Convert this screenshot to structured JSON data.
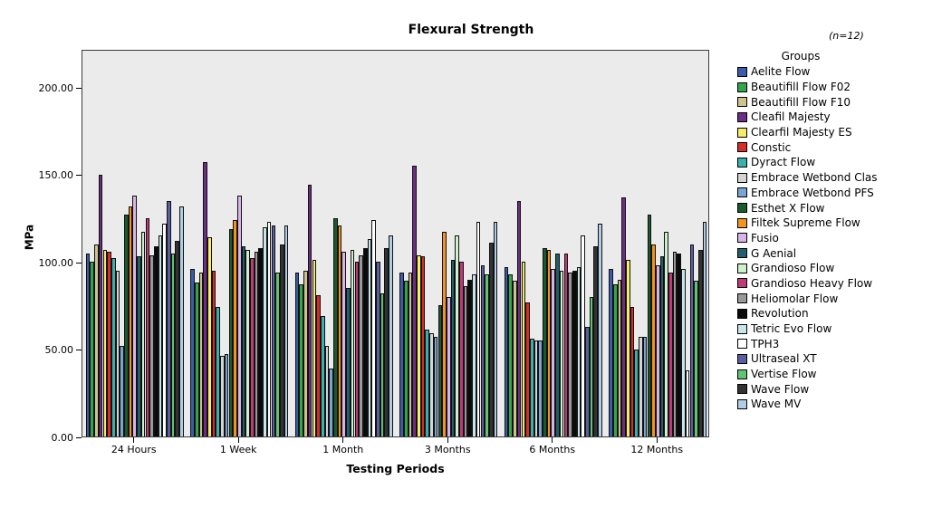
{
  "chart": {
    "title": "Flexural Strength",
    "annotation": "(n=12)"
  },
  "chart_data": {
    "type": "bar",
    "title": "Flexural Strength",
    "xlabel": "Testing Periods",
    "ylabel": "MPa",
    "ylim": [
      0,
      222
    ],
    "yticks": [
      0,
      50,
      100,
      150,
      200
    ],
    "ytick_labels": [
      "0.00",
      "50.00",
      "100.00",
      "150.00",
      "200.00"
    ],
    "grid": false,
    "legend_title": "Groups",
    "legend_position": "right",
    "categories": [
      "24 Hours",
      "1 Week",
      "1 Month",
      "3 Months",
      "6 Months",
      "12 Months"
    ],
    "series": [
      {
        "name": "Aelite Flow",
        "color": "#3C5BA8",
        "values": [
          105,
          96,
          94,
          94,
          97,
          96
        ]
      },
      {
        "name": "Beautifill Flow F02",
        "color": "#33A64C",
        "values": [
          100,
          88,
          87,
          89,
          93,
          87
        ]
      },
      {
        "name": "Beautifill Flow F10",
        "color": "#CDC48D",
        "values": [
          110,
          94,
          95,
          94,
          89,
          90
        ]
      },
      {
        "name": "Cleafil Majesty",
        "color": "#6E2D85",
        "values": [
          150,
          157,
          144,
          155,
          135,
          137
        ]
      },
      {
        "name": "Clearfil Majesty ES",
        "color": "#F5EC68",
        "values": [
          107,
          114,
          101,
          104,
          100,
          101
        ]
      },
      {
        "name": "Constic",
        "color": "#D62D28",
        "values": [
          106,
          95,
          81,
          103,
          77,
          74
        ]
      },
      {
        "name": "Dyract Flow",
        "color": "#3AB0AD",
        "values": [
          102,
          74,
          69,
          61,
          56,
          50
        ]
      },
      {
        "name": "Embrace Wetbond Clas",
        "color": "#D4D4D4",
        "values": [
          95,
          46,
          52,
          59,
          55,
          57
        ]
      },
      {
        "name": "Embrace Wetbond PFS",
        "color": "#7AA4D4",
        "values": [
          52,
          47,
          39,
          57,
          55,
          57
        ]
      },
      {
        "name": "Esthet X Flow",
        "color": "#1A5B2D",
        "values": [
          127,
          119,
          125,
          75,
          108,
          127
        ]
      },
      {
        "name": "Filtek Supreme Flow",
        "color": "#F29322",
        "values": [
          132,
          124,
          121,
          117,
          107,
          110
        ]
      },
      {
        "name": "Fusio",
        "color": "#D7B5E8",
        "values": [
          138,
          138,
          106,
          80,
          96,
          98
        ]
      },
      {
        "name": "G Aenial",
        "color": "#225E6E",
        "values": [
          103,
          109,
          85,
          101,
          105,
          103
        ]
      },
      {
        "name": "Grandioso Flow",
        "color": "#CEF0CC",
        "values": [
          117,
          107,
          107,
          115,
          95,
          117
        ]
      },
      {
        "name": "Grandioso Heavy Flow",
        "color": "#BF3A78",
        "values": [
          125,
          102,
          100,
          100,
          105,
          94
        ]
      },
      {
        "name": "Heliomolar Flow",
        "color": "#999999",
        "values": [
          104,
          106,
          104,
          86,
          94,
          106
        ]
      },
      {
        "name": "Revolution",
        "color": "#0A0A0A",
        "values": [
          109,
          108,
          108,
          90,
          95,
          105
        ]
      },
      {
        "name": "Tetric Evo Flow",
        "color": "#C8E6EA",
        "values": [
          115,
          120,
          113,
          93,
          97,
          96
        ]
      },
      {
        "name": "TPH3",
        "color": "#FFFFFF",
        "values": [
          122,
          123,
          124,
          123,
          115,
          38
        ]
      },
      {
        "name": "Ultraseal XT",
        "color": "#5A5FA0",
        "values": [
          135,
          121,
          100,
          98,
          63,
          110
        ]
      },
      {
        "name": "Vertise Flow",
        "color": "#62C470",
        "values": [
          105,
          94,
          82,
          93,
          80,
          89
        ]
      },
      {
        "name": "Wave Flow",
        "color": "#333333",
        "values": [
          112,
          110,
          108,
          111,
          109,
          107
        ]
      },
      {
        "name": "Wave MV",
        "color": "#B0CDE6",
        "values": [
          132,
          121,
          115,
          123,
          122,
          123
        ]
      }
    ]
  },
  "colors": {
    "plot_bg": "#EBEBEB",
    "bar_border": "#111111",
    "axis": "#000000"
  }
}
